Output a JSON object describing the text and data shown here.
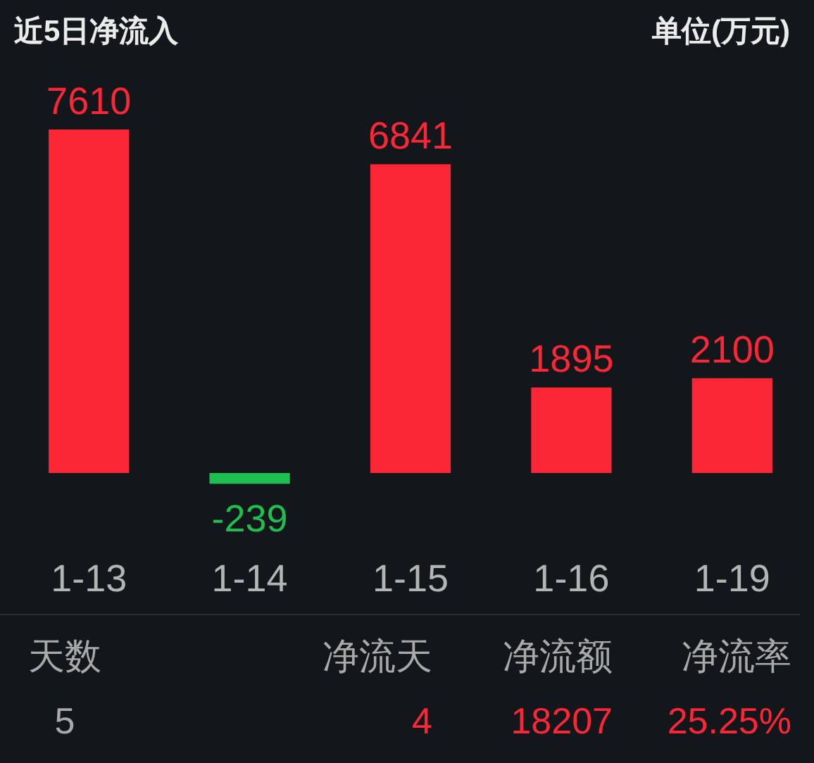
{
  "chart_data": {
    "type": "bar",
    "title": "近5日净流入",
    "subtitle": "单位(万元)",
    "categories": [
      "1-13",
      "1-14",
      "1-15",
      "1-16",
      "1-19"
    ],
    "values": [
      7610,
      -239,
      6841,
      1895,
      2100
    ],
    "colors": [
      "#fb2736",
      "#1fbf4f",
      "#fb2736",
      "#fb2736",
      "#fb2736"
    ],
    "data_labels": true,
    "annotations": [
      "天数",
      "净流天",
      "净流额",
      "净流率",
      "5",
      "4",
      "18207",
      "25.25%"
    ]
  }
}
